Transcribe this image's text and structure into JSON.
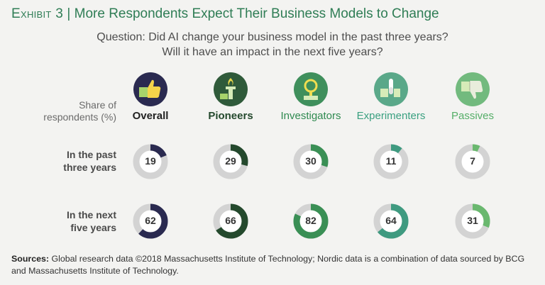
{
  "exhibit": {
    "label": "Exhibit 3",
    "separator": "|",
    "title": "More Respondents Expect Their Business Models to Change"
  },
  "question": {
    "line1": "Question: Did AI change your business model in the past three years?",
    "line2": "Will it have an impact in the next five years?"
  },
  "share_label": {
    "line1": "Share of",
    "line2": "respondents (%)"
  },
  "icon_bg_colors": [
    "#2a2a50",
    "#2f5a3a",
    "#3f8f5c",
    "#5aa889",
    "#72ba7e"
  ],
  "chart_data": {
    "type": "donut",
    "categories": [
      "Overall",
      "Pioneers",
      "Investigators",
      "Experimenters",
      "Passives"
    ],
    "category_colors": [
      "#2a2a50",
      "#24492d",
      "#3a8f55",
      "#3f9a80",
      "#6ab86f"
    ],
    "category_icons": [
      "thumbs-up-icon",
      "torch-icon",
      "magnifier-icon",
      "test-tube-icon",
      "thumbs-down-icon"
    ],
    "rows": [
      {
        "label_line1": "In the past",
        "label_line2": "three years",
        "values": [
          19,
          29,
          30,
          11,
          7
        ]
      },
      {
        "label_line1": "In the next",
        "label_line2": "five years",
        "values": [
          62,
          66,
          82,
          64,
          31
        ]
      }
    ],
    "unit": "%",
    "track_color": "#d3d3d3"
  },
  "sources": {
    "label": "Sources:",
    "text": "Global research data ©2018 Massachusetts Institute of Technology; Nordic data is a combination of data sourced by BCG and Massachusetts Institute of Technology."
  }
}
